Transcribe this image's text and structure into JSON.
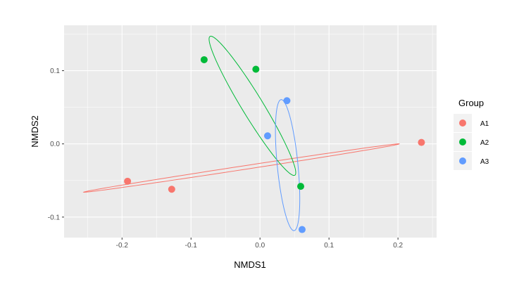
{
  "chart_data": {
    "type": "scatter",
    "title": "",
    "xlabel": "NMDS1",
    "ylabel": "NMDS2",
    "xlim": [
      -0.284,
      0.256
    ],
    "ylim": [
      -0.128,
      0.162
    ],
    "x_ticks": [
      -0.2,
      -0.1,
      0.0,
      0.1,
      0.2
    ],
    "x_tick_labels": [
      "-0.2",
      "-0.1",
      "0.0",
      "0.1",
      "0.2"
    ],
    "y_ticks": [
      -0.1,
      0.0,
      0.1
    ],
    "y_tick_labels": [
      "-0.1",
      "0.0",
      "0.1"
    ],
    "grid": true,
    "legend": {
      "title": "Group",
      "position": "right"
    },
    "series": [
      {
        "name": "A1",
        "color": "#F8766D",
        "points": [
          [
            -0.192,
            -0.051
          ],
          [
            -0.128,
            -0.062
          ],
          [
            0.234,
            0.002
          ]
        ],
        "ellipse": {
          "cx": -0.027,
          "cy": -0.033,
          "a": 0.231,
          "b": 0.0025,
          "angle_deg": 8.2
        }
      },
      {
        "name": "A2",
        "color": "#00BA38",
        "points": [
          [
            -0.081,
            0.115
          ],
          [
            -0.006,
            0.102
          ],
          [
            0.059,
            -0.058
          ]
        ],
        "ellipse": {
          "cx": -0.011,
          "cy": 0.052,
          "a": 0.113,
          "b": 0.015,
          "angle_deg": -57
        }
      },
      {
        "name": "A3",
        "color": "#619CFF",
        "points": [
          [
            0.039,
            0.059
          ],
          [
            0.011,
            0.011
          ],
          [
            0.061,
            -0.117
          ]
        ],
        "ellipse": {
          "cx": 0.04,
          "cy": -0.029,
          "a": 0.09,
          "b": 0.015,
          "angle_deg": -84
        }
      }
    ]
  }
}
